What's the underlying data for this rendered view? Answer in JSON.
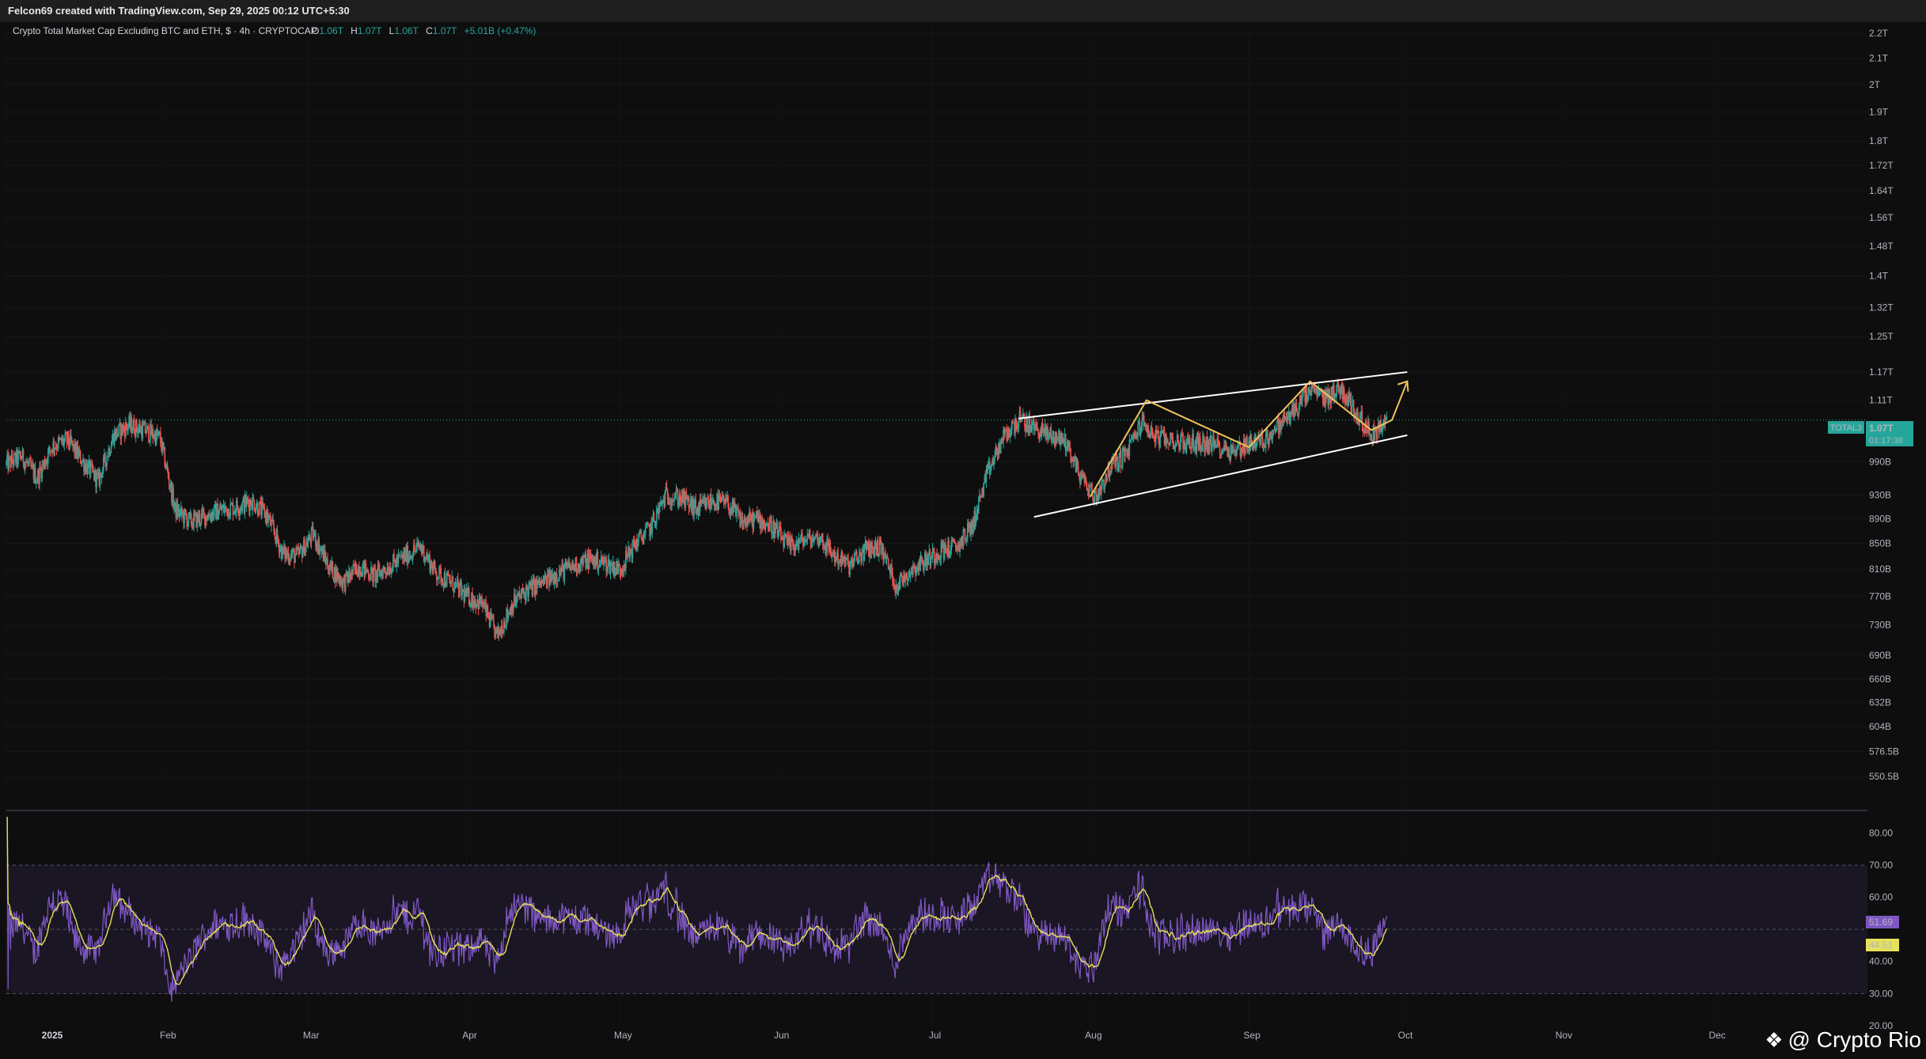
{
  "header": {
    "credit": "Felcon69 created with TradingView.com, Sep 29, 2025 00:12 UTC+5:30"
  },
  "legend": {
    "title": "Crypto Total Market Cap Excluding BTC and ETH, $ · 4h · CRYPTOCAP",
    "o_label": "O",
    "o_value": "1.06T",
    "h_label": "H",
    "h_value": "1.07T",
    "l_label": "L",
    "l_value": "1.06T",
    "c_label": "C",
    "c_value": "1.07T",
    "change": "+5.01B (+0.47%)"
  },
  "price_tag": {
    "symbol": "TOTAL3",
    "price": "1.07T",
    "countdown": "01:17:38"
  },
  "rsi_tags": {
    "rsi": "51.69",
    "rsi_ma": "44.51"
  },
  "watermark": {
    "logo": "❖",
    "text": "@ Crypto Rio"
  },
  "colors": {
    "up": "#26a69a",
    "down": "#ef5350",
    "background": "#0e0e0f",
    "trendline": "#ffffff",
    "pattern": "#f0c35a",
    "rsi": "#7e57c2",
    "rsi_ma": "#e6e05a",
    "rsi_band": "#1a1623",
    "price_tag_bg": "#26a69a"
  },
  "chart_data": {
    "type": "line",
    "title": "Crypto Total Market Cap Excluding BTC and ETH, $ · 4h · CRYPTOCAP",
    "x_ticks": [
      "2025",
      "Feb",
      "Mar",
      "Apr",
      "May",
      "Jun",
      "Jul",
      "Aug",
      "Sep",
      "Oct",
      "Nov",
      "Dec"
    ],
    "y_ticks": [
      "2.2T",
      "2.1T",
      "2T",
      "1.9T",
      "1.8T",
      "1.72T",
      "1.64T",
      "1.56T",
      "1.48T",
      "1.4T",
      "1.32T",
      "1.25T",
      "1.17T",
      "1.11T",
      "990B",
      "930B",
      "890B",
      "850B",
      "810B",
      "770B",
      "730B",
      "690B",
      "660B",
      "632B",
      "604B",
      "576.5B",
      "550.5B"
    ],
    "y_tick_values": [
      2200,
      2100,
      2000,
      1900,
      1800,
      1720,
      1640,
      1560,
      1480,
      1400,
      1320,
      1250,
      1170,
      1110,
      990,
      930,
      890,
      850,
      810,
      770,
      730,
      690,
      660,
      632,
      604,
      576.5,
      550.5
    ],
    "y_scale": "log",
    "y_unit": "billions USD",
    "ylim": [
      540,
      2230
    ],
    "xlim": [
      "2025-01-01",
      "2025-12-31"
    ],
    "series": [
      {
        "x": [
          "2025-01-01",
          "2025-01-04",
          "2025-01-07",
          "2025-01-10",
          "2025-01-13",
          "2025-01-16",
          "2025-01-19",
          "2025-01-22",
          "2025-01-25",
          "2025-01-28",
          "2025-01-31",
          "2025-02-03",
          "2025-02-06",
          "2025-02-09",
          "2025-02-12",
          "2025-02-15",
          "2025-02-18",
          "2025-02-21",
          "2025-02-24",
          "2025-02-27",
          "2025-03-02",
          "2025-03-05",
          "2025-03-08",
          "2025-03-11",
          "2025-03-14",
          "2025-03-17",
          "2025-03-20",
          "2025-03-23",
          "2025-03-26",
          "2025-03-29",
          "2025-04-01",
          "2025-04-04",
          "2025-04-07",
          "2025-04-10",
          "2025-04-13",
          "2025-04-16",
          "2025-04-19",
          "2025-04-22",
          "2025-04-25",
          "2025-04-28",
          "2025-05-01",
          "2025-05-04",
          "2025-05-07",
          "2025-05-10",
          "2025-05-13",
          "2025-05-16",
          "2025-05-19",
          "2025-05-22",
          "2025-05-25",
          "2025-05-28",
          "2025-05-31",
          "2025-06-03",
          "2025-06-06",
          "2025-06-09",
          "2025-06-12",
          "2025-06-15",
          "2025-06-18",
          "2025-06-21",
          "2025-06-24",
          "2025-06-27",
          "2025-06-30",
          "2025-07-03",
          "2025-07-06",
          "2025-07-09",
          "2025-07-12",
          "2025-07-15",
          "2025-07-18",
          "2025-07-21",
          "2025-07-24",
          "2025-07-27",
          "2025-07-30",
          "2025-08-02",
          "2025-08-05",
          "2025-08-08",
          "2025-08-11",
          "2025-08-14",
          "2025-08-17",
          "2025-08-20",
          "2025-08-23",
          "2025-08-26",
          "2025-08-29",
          "2025-09-01",
          "2025-09-04",
          "2025-09-07",
          "2025-09-10",
          "2025-09-13",
          "2025-09-16",
          "2025-09-19",
          "2025-09-22",
          "2025-09-25",
          "2025-09-28"
        ],
        "values": [
          985,
          1000,
          960,
          1020,
          1030,
          990,
          955,
          1040,
          1060,
          1050,
          1035,
          905,
          885,
          895,
          905,
          910,
          920,
          895,
          835,
          830,
          865,
          815,
          790,
          815,
          800,
          815,
          830,
          845,
          805,
          790,
          770,
          760,
          715,
          760,
          780,
          790,
          805,
          815,
          825,
          820,
          810,
          850,
          875,
          930,
          925,
          905,
          920,
          915,
          885,
          890,
          875,
          845,
          855,
          860,
          830,
          815,
          840,
          845,
          785,
          810,
          825,
          840,
          845,
          880,
          970,
          1035,
          1070,
          1055,
          1040,
          1030,
          965,
          925,
          980,
          1005,
          1065,
          1035,
          1030,
          1025,
          1025,
          1020,
          1010,
          1025,
          1030,
          1060,
          1090,
          1130,
          1115,
          1135,
          1085,
          1040,
          1070
        ]
      }
    ],
    "channel_lines": [
      {
        "name": "upper",
        "points": [
          [
            "2025-07-18",
            1073
          ],
          [
            "2025-10-02",
            1170
          ]
        ]
      },
      {
        "name": "lower",
        "points": [
          [
            "2025-07-21",
            893
          ],
          [
            "2025-10-02",
            1040
          ]
        ]
      }
    ],
    "pattern_path": [
      [
        "2025-08-01",
        927
      ],
      [
        "2025-08-12",
        1110
      ],
      [
        "2025-09-01",
        1017
      ],
      [
        "2025-09-13",
        1150
      ],
      [
        "2025-09-25",
        1050
      ],
      [
        "2025-09-29",
        1070
      ],
      [
        "2025-10-02",
        1150
      ]
    ],
    "rsi": {
      "y_ticks": [
        "80.00",
        "70.00",
        "60.00",
        "40.00",
        "30.00",
        "20.00"
      ],
      "y_tick_values": [
        80,
        70,
        60,
        40,
        30,
        20
      ],
      "band": [
        30,
        70
      ],
      "midline": 50,
      "ylim": [
        19,
        86
      ],
      "current_rsi": 51.69,
      "current_ma": 44.51
    }
  }
}
